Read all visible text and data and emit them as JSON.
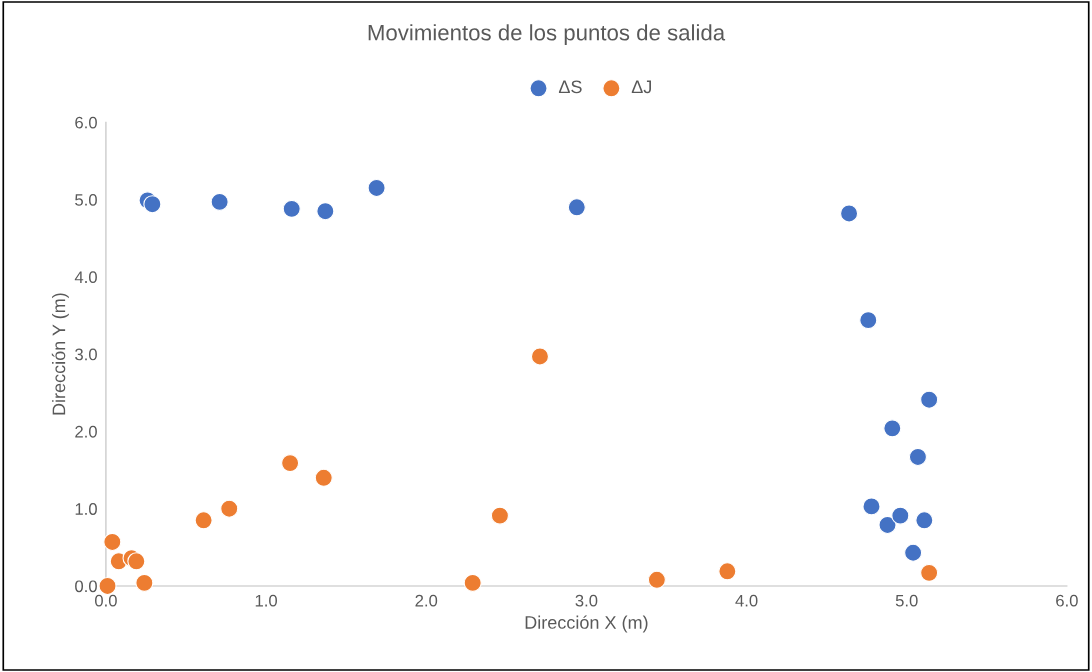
{
  "chart_data": {
    "type": "scatter",
    "title": "Movimientos de los puntos de salida",
    "xlabel": "Dirección X (m)",
    "ylabel": "Dirección Y (m)",
    "xlim": [
      0,
      6
    ],
    "ylim": [
      0,
      6
    ],
    "xticks": [
      {
        "value": 0,
        "label": "0.0"
      },
      {
        "value": 1,
        "label": "1.0"
      },
      {
        "value": 2,
        "label": "2.0"
      },
      {
        "value": 3,
        "label": "3.0"
      },
      {
        "value": 4,
        "label": "4.0"
      },
      {
        "value": 5,
        "label": "5.0"
      },
      {
        "value": 6,
        "label": "6.0"
      }
    ],
    "yticks": [
      {
        "value": 0,
        "label": "0.0"
      },
      {
        "value": 1,
        "label": "1.0"
      },
      {
        "value": 2,
        "label": "2.0"
      },
      {
        "value": 3,
        "label": "3.0"
      },
      {
        "value": 4,
        "label": "4.0"
      },
      {
        "value": 5,
        "label": "5.0"
      },
      {
        "value": 6,
        "label": "6.0"
      }
    ],
    "grid": false,
    "legend": "top",
    "marker": "circle",
    "series": [
      {
        "name": "ΔS",
        "color": "#4472c4",
        "x": [
          0.26,
          0.29,
          0.71,
          1.16,
          1.37,
          1.69,
          2.94,
          4.64,
          4.76,
          5.14,
          4.91,
          5.07,
          4.78,
          4.88,
          4.96,
          5.11,
          5.04
        ],
        "values": [
          4.99,
          4.94,
          4.97,
          4.88,
          4.85,
          5.15,
          4.9,
          4.82,
          3.44,
          2.41,
          2.04,
          1.67,
          1.03,
          0.79,
          0.91,
          0.85,
          0.43
        ]
      },
      {
        "name": "ΔJ",
        "color": "#ed7d31",
        "x": [
          0.01,
          0.04,
          0.08,
          0.16,
          0.19,
          0.24,
          0.61,
          0.77,
          1.15,
          1.36,
          2.29,
          2.46,
          2.71,
          3.44,
          3.88,
          5.14
        ],
        "values": [
          0.0,
          0.57,
          0.32,
          0.36,
          0.32,
          0.04,
          0.85,
          1.0,
          1.59,
          1.4,
          0.04,
          0.91,
          2.97,
          0.08,
          0.19,
          0.17
        ]
      }
    ]
  }
}
